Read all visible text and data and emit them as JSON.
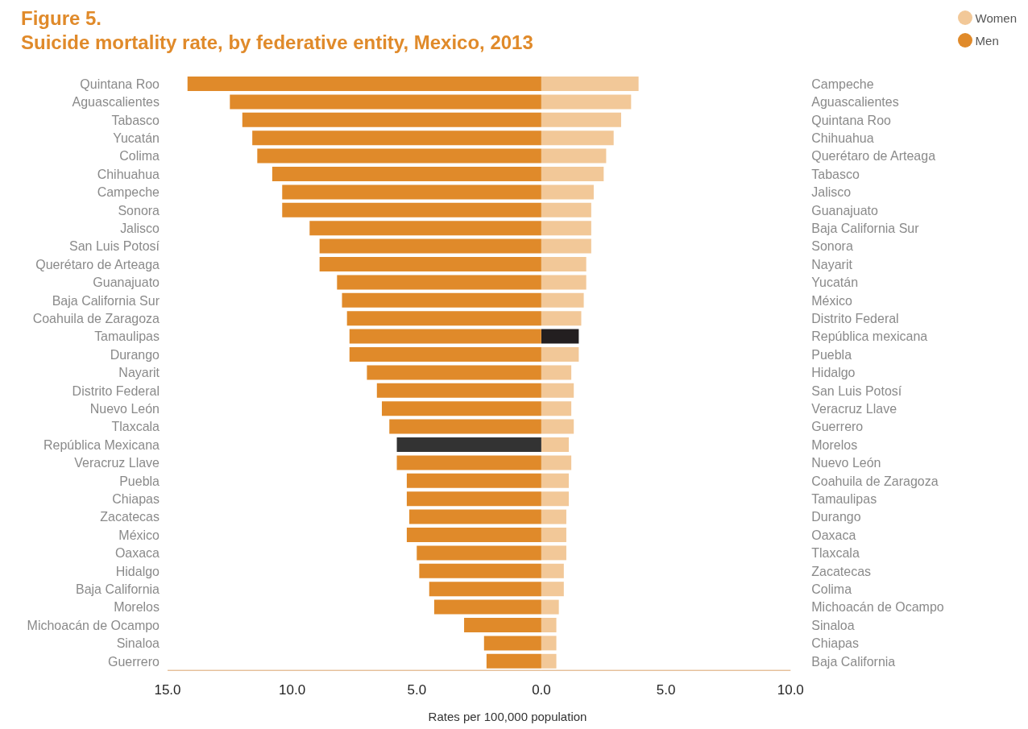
{
  "chart_data": [
    {
      "type": "bar",
      "orientation": "horizontal",
      "title": "Figure 5.",
      "subtitle": "Suicide mortality rate, by federative entity, Mexico, 2013",
      "xlabel": "Rates per 100,000 population",
      "legend": "top right",
      "categories": [
        "Quintana Roo",
        "Aguascalientes",
        "Tabasco",
        "Yucatán",
        "Colima",
        "Chihuahua",
        "Campeche",
        "Sonora",
        "Jalisco",
        "San Luis Potosí",
        "Querétaro de Arteaga",
        "Guanajuato",
        "Baja California Sur",
        "Coahuila de Zaragoza",
        "Tamaulipas",
        "Durango",
        "Nayarit",
        "Distrito Federal",
        "Nuevo León",
        "Tlaxcala",
        "República Mexicana",
        "Veracruz Llave",
        "Puebla",
        "Chiapas",
        "Zacatecas",
        "México",
        "Oaxaca",
        "Hidalgo",
        "Baja California",
        "Morelos",
        "Michoacán de Ocampo",
        "Sinaloa",
        "Guerrero"
      ],
      "series": [
        {
          "name": "Men",
          "color": "#e08a2a",
          "colors": [
            "#e08a2a",
            "#e08a2a",
            "#e08a2a",
            "#e08a2a",
            "#e08a2a",
            "#e08a2a",
            "#e08a2a",
            "#e08a2a",
            "#e08a2a",
            "#e08a2a",
            "#e08a2a",
            "#e08a2a",
            "#e08a2a",
            "#e08a2a",
            "#e08a2a",
            "#e08a2a",
            "#e08a2a",
            "#e08a2a",
            "#e08a2a",
            "#e08a2a",
            "#333333",
            "#e08a2a",
            "#e08a2a",
            "#e08a2a",
            "#e08a2a",
            "#e08a2a",
            "#e08a2a",
            "#e08a2a",
            "#e08a2a",
            "#e08a2a",
            "#e08a2a",
            "#e08a2a",
            "#e08a2a"
          ],
          "values": [
            14.2,
            12.5,
            12.0,
            11.6,
            11.4,
            10.8,
            10.4,
            10.4,
            9.3,
            8.9,
            8.9,
            8.2,
            8.0,
            7.8,
            7.7,
            7.7,
            7.0,
            6.6,
            6.4,
            6.1,
            5.8,
            5.8,
            5.4,
            5.4,
            5.3,
            5.4,
            5.0,
            4.9,
            4.5,
            4.3,
            3.1,
            2.3,
            2.2
          ]
        }
      ],
      "xlim": [
        15,
        0
      ],
      "xticks": [
        {
          "value": 15,
          "label": "15.0"
        },
        {
          "value": 10,
          "label": "10.0"
        },
        {
          "value": 5,
          "label": "5.0"
        },
        {
          "value": 0,
          "label": "0.0"
        }
      ]
    },
    {
      "type": "bar",
      "orientation": "horizontal",
      "legend": "top right",
      "categories": [
        "Campeche",
        "Aguascalientes",
        "Quintana Roo",
        "Chihuahua",
        "Querétaro de Arteaga",
        "Tabasco",
        "Jalisco",
        "Guanajuato",
        "Baja California Sur",
        "Sonora",
        "Nayarit",
        "Yucatán",
        "México",
        "Distrito Federal",
        "República mexicana",
        "Puebla",
        "Hidalgo",
        "San Luis Potosí",
        "Veracruz Llave",
        "Guerrero",
        "Morelos",
        "Nuevo León",
        "Coahuila de Zaragoza",
        "Tamaulipas",
        "Durango",
        "Oaxaca",
        "Tlaxcala",
        "Zacatecas",
        "Colima",
        "Michoacán de Ocampo",
        "Sinaloa",
        "Chiapas",
        "Baja California"
      ],
      "series": [
        {
          "name": "Women",
          "color": "#f2c898",
          "colors": [
            "#f2c898",
            "#f2c898",
            "#f2c898",
            "#f2c898",
            "#f2c898",
            "#f2c898",
            "#f2c898",
            "#f2c898",
            "#f2c898",
            "#f2c898",
            "#f2c898",
            "#f2c898",
            "#f2c898",
            "#f2c898",
            "#231f20",
            "#f2c898",
            "#f2c898",
            "#f2c898",
            "#f2c898",
            "#f2c898",
            "#f2c898",
            "#f2c898",
            "#f2c898",
            "#f2c898",
            "#f2c898",
            "#f2c898",
            "#f2c898",
            "#f2c898",
            "#f2c898",
            "#f2c898",
            "#f2c898",
            "#f2c898",
            "#f2c898"
          ],
          "values": [
            3.9,
            3.6,
            3.2,
            2.9,
            2.6,
            2.5,
            2.1,
            2.0,
            2.0,
            2.0,
            1.8,
            1.8,
            1.7,
            1.6,
            1.5,
            1.5,
            1.2,
            1.3,
            1.2,
            1.3,
            1.1,
            1.2,
            1.1,
            1.1,
            1.0,
            1.0,
            1.0,
            0.9,
            0.9,
            0.7,
            0.6,
            0.6,
            0.6
          ]
        }
      ],
      "xlim": [
        0,
        10
      ],
      "xticks": [
        {
          "value": 5,
          "label": "5.0"
        },
        {
          "value": 10,
          "label": "10.0"
        }
      ]
    }
  ]
}
